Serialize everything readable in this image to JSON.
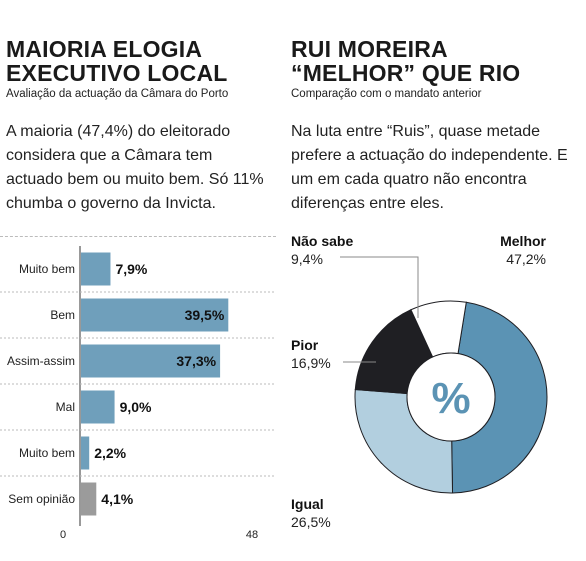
{
  "left": {
    "title_line1": "MAIORIA ELOGIA",
    "title_line2": "EXECUTIVO LOCAL",
    "subtitle": "Avaliação da actuação da Câmara do Porto",
    "lead": "A maioria (47,4%) do eleitorado considera que a Câmara tem actuado bem ou muito bem. Só 11% chumba o governo da Invicta."
  },
  "right": {
    "title_line1": "RUI MOREIRA",
    "title_line2": "“MELHOR” QUE RIO",
    "subtitle": "Comparação com o mandato anterior",
    "lead": "Na luta entre “Ruis”, quase metade prefere a actuação do independente. E um em cada quatro não encontra diferenças entre eles."
  },
  "chart_data": [
    {
      "type": "bar",
      "orientation": "horizontal",
      "categories": [
        "Muito bem",
        "Bem",
        "Assim-assim",
        "Mal",
        "Muito bem",
        "Sem opinião"
      ],
      "values": [
        7.9,
        39.5,
        37.3,
        9.0,
        2.2,
        4.1
      ],
      "value_labels": [
        "7,9%",
        "39,5%",
        "37,3%",
        "9,0%",
        "2,2%",
        "4,1%"
      ],
      "colors": [
        "#6f9fbb",
        "#6f9fbb",
        "#6f9fbb",
        "#6f9fbb",
        "#6f9fbb",
        "#9b9b9b"
      ],
      "xlim": [
        0,
        48
      ],
      "tick_labels": [
        "0",
        "48"
      ]
    },
    {
      "type": "pie",
      "style": "donut",
      "center_label": "%",
      "slices": [
        {
          "name": "Melhor",
          "value": 47.2,
          "label": "47,2%",
          "color": "#5b93b4"
        },
        {
          "name": "Igual",
          "value": 26.5,
          "label": "26,5%",
          "color": "#b2cfdf"
        },
        {
          "name": "Pior",
          "value": 16.9,
          "label": "16,9%",
          "color": "#1f1f23"
        },
        {
          "name": "Não sabe",
          "value": 9.4,
          "label": "9,4%",
          "color": "#ffffff"
        }
      ]
    }
  ]
}
